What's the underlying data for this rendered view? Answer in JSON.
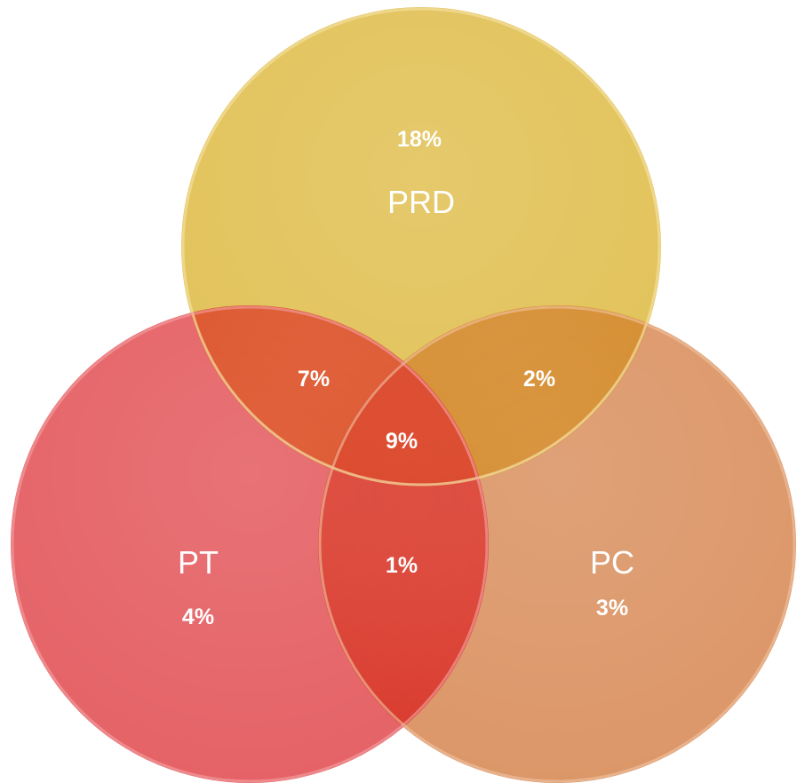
{
  "sets": [
    {
      "id": "prd",
      "label": "PRD",
      "percent": "18%",
      "color": "#e2c35b"
    },
    {
      "id": "pt",
      "label": "PT",
      "percent": "4%",
      "color": "#e45b5f"
    },
    {
      "id": "pc",
      "label": "PC",
      "percent": "3%",
      "color": "#d98f5e"
    }
  ],
  "overlaps": {
    "prd_pt": "7%",
    "prd_pc": "2%",
    "pt_pc": "1%",
    "all": "9%"
  }
}
